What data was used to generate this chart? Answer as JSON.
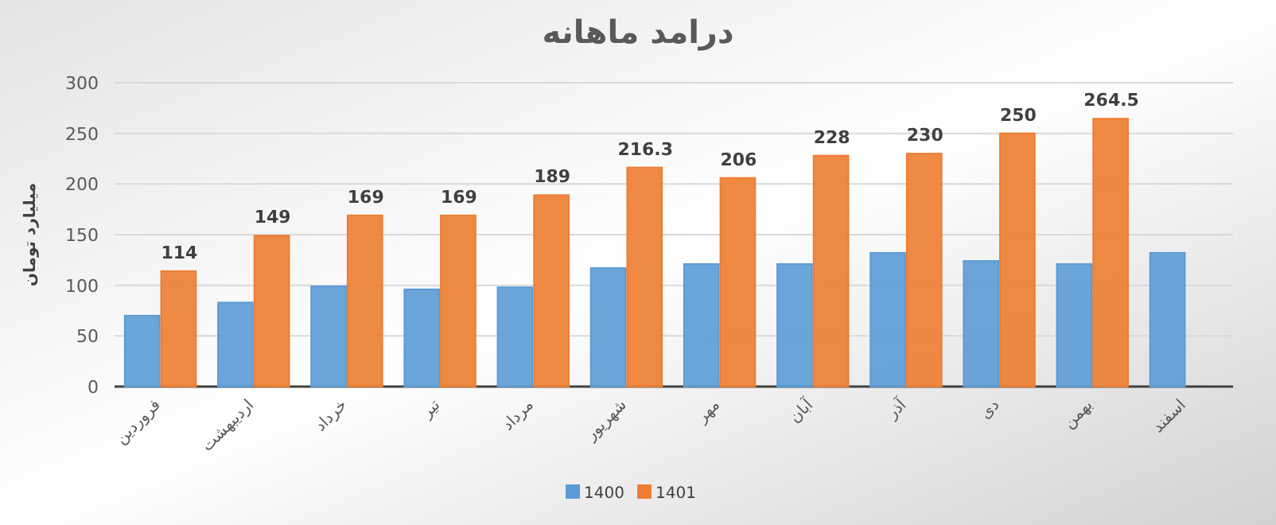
{
  "chart_data": {
    "type": "bar",
    "title": "درامد ماهانه",
    "ylabel": "میلیارد تومان",
    "categories": [
      "فروردین",
      "اردیبهشت",
      "خرداد",
      "تیر",
      "مرداد",
      "شهریور",
      "مهر",
      "آبان",
      "آذر",
      "دی",
      "بهمن",
      "اسفند"
    ],
    "series": [
      {
        "name": "1400",
        "color": "#5b9bd5",
        "values": [
          70,
          83,
          99,
          96,
          98,
          117,
          121,
          121,
          132,
          124,
          121,
          132
        ]
      },
      {
        "name": "1401",
        "color": "#ed7d31",
        "values": [
          114,
          149,
          169,
          169,
          189,
          216.3,
          206,
          228,
          230,
          250,
          264.5,
          null
        ],
        "value_labels": [
          "114",
          "149",
          "169",
          "169",
          "189",
          "216.3",
          "206",
          "228",
          "230",
          "250",
          "264.5",
          null
        ]
      }
    ],
    "ylim": [
      0,
      300
    ],
    "yticks": [
      0,
      50,
      100,
      150,
      200,
      250,
      300
    ],
    "grid": "y",
    "legend": "bottom"
  }
}
